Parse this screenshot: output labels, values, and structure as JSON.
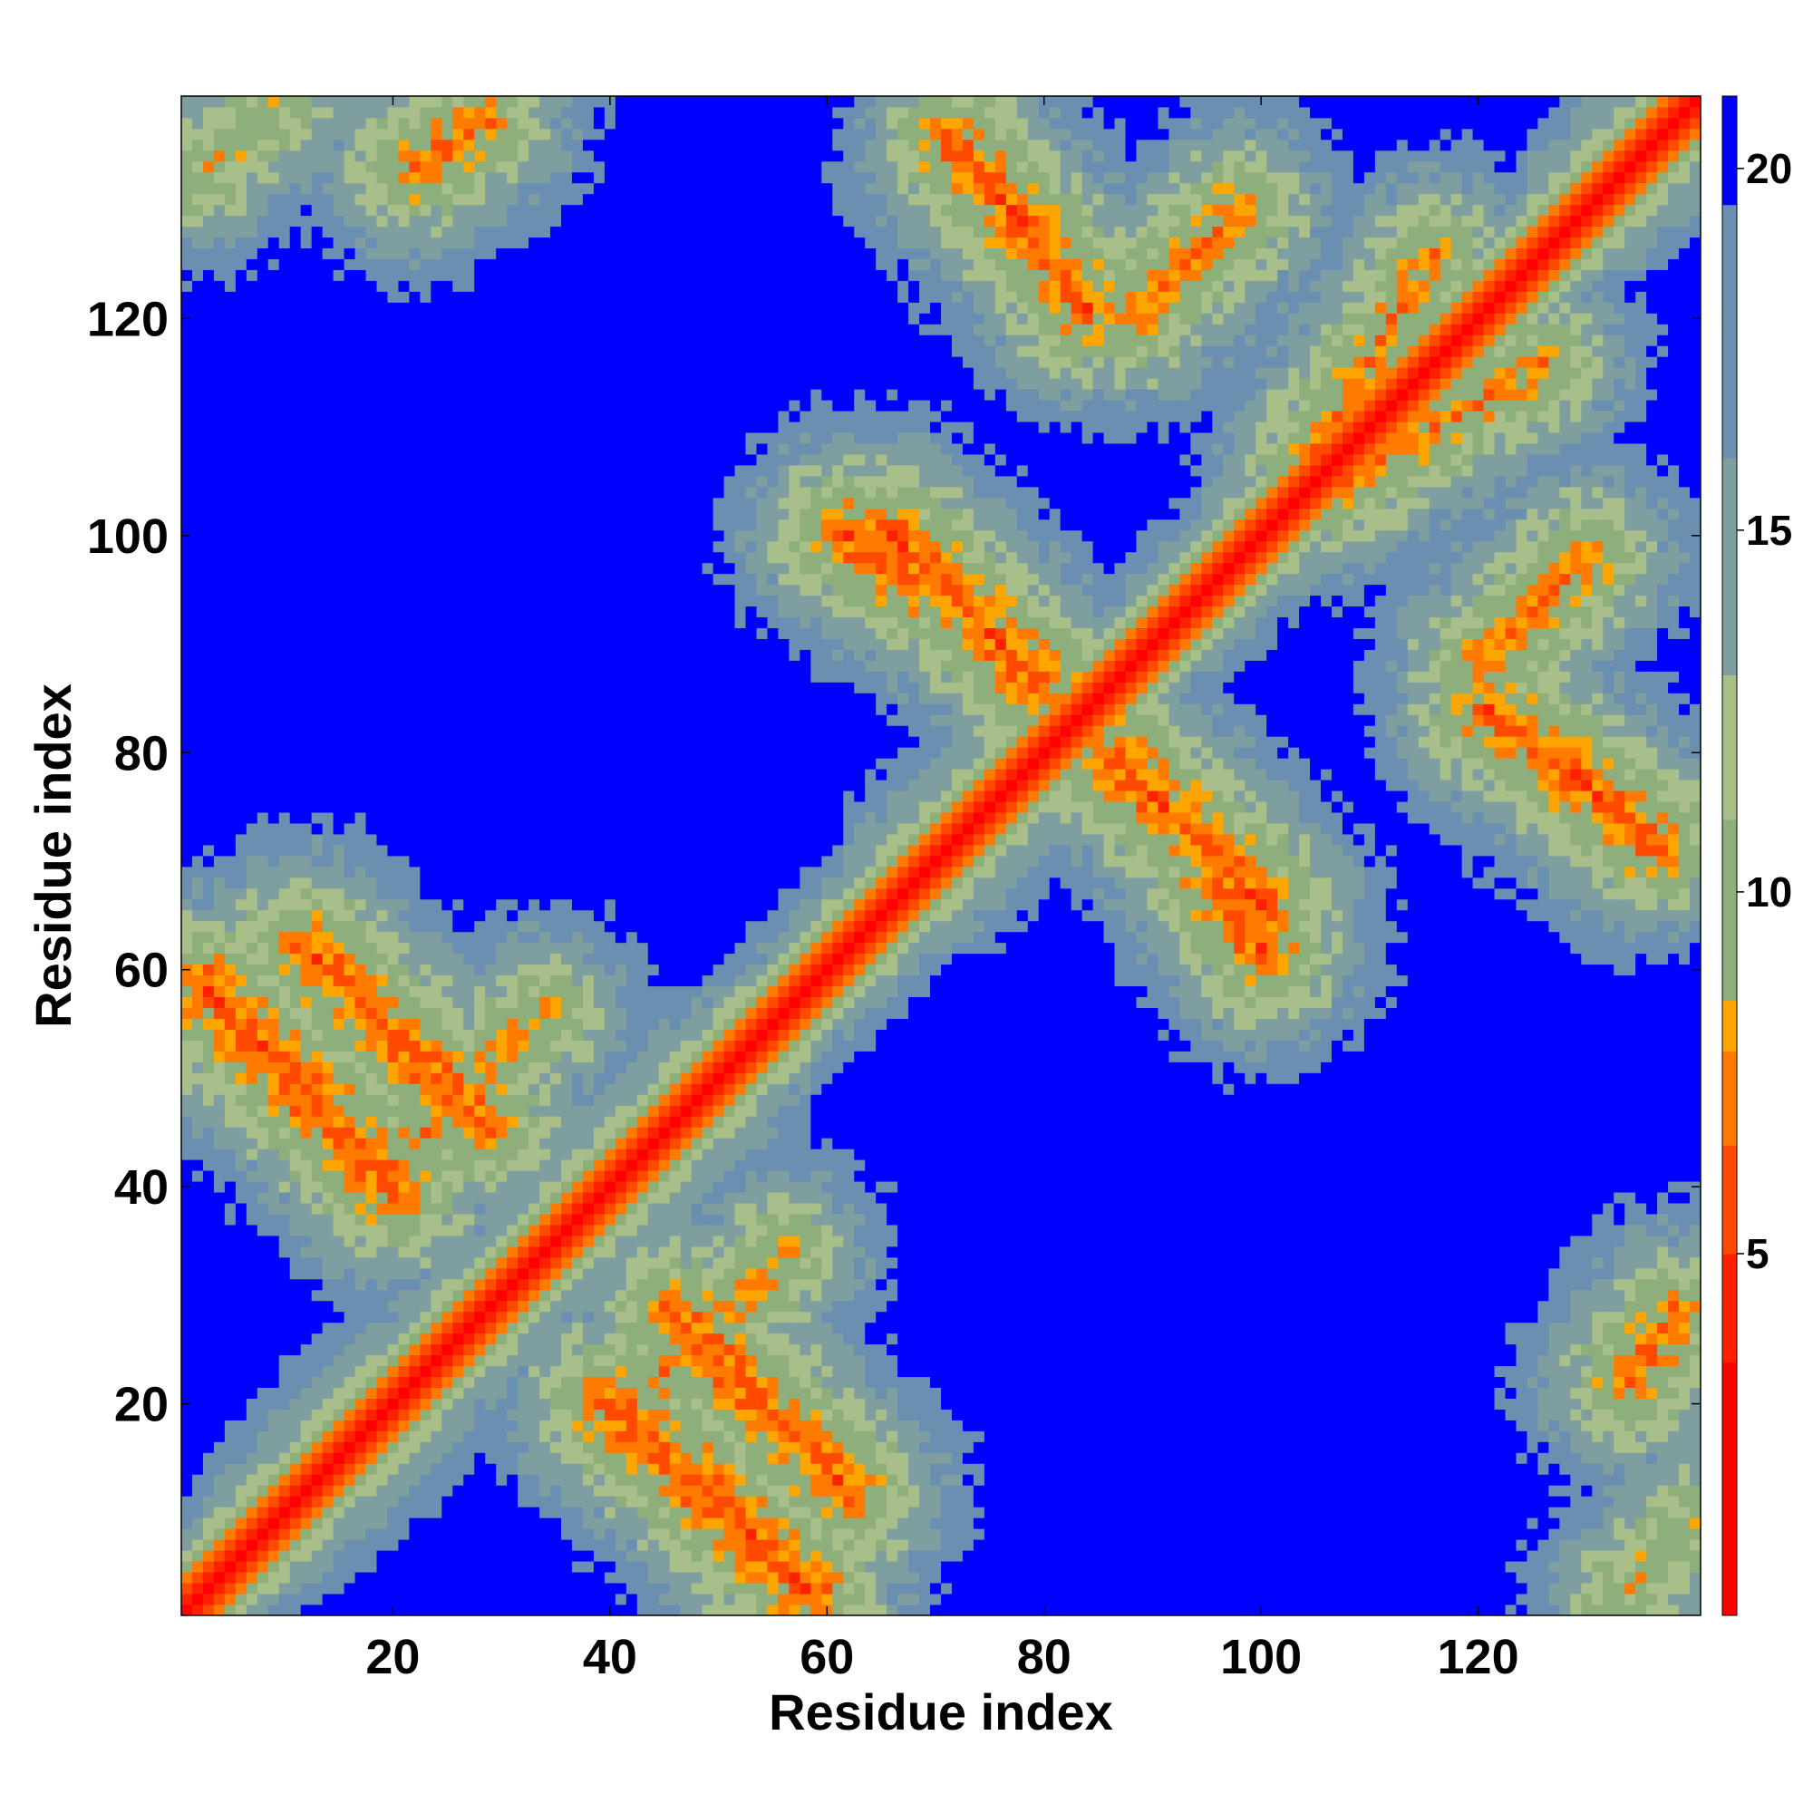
{
  "chart_data": {
    "type": "heatmap",
    "title": "",
    "xlabel": "Residue index",
    "ylabel": "Residue index",
    "n_residues": 140,
    "xlim": [
      0.5,
      140.5
    ],
    "ylim": [
      0.5,
      140.5
    ],
    "xticks": [
      20,
      40,
      60,
      80,
      100,
      120
    ],
    "yticks": [
      20,
      40,
      60,
      80,
      100,
      120
    ],
    "colorbar": {
      "ticks": [
        5,
        10,
        15,
        20
      ],
      "range": [
        0,
        21
      ],
      "position": "right",
      "colors": [
        "#ff0000",
        "#ff2000",
        "#ff4a00",
        "#ff7a00",
        "#ffa500",
        "#8eae7c",
        "#a9bf8a",
        "#7f9ea0",
        "#6a8fb0",
        "#0000ff"
      ],
      "bounds": [
        0,
        3.5,
        5,
        6.5,
        7.8,
        8.5,
        11,
        13,
        16,
        19.5,
        21
      ]
    },
    "cap_value": 21,
    "diagonal_band": [
      {
        "offset": 0,
        "value": 0.5
      },
      {
        "offset": 1,
        "value": 3.8
      },
      {
        "offset": 2,
        "value": 5.5
      },
      {
        "offset": 3,
        "value": 7.5
      },
      {
        "offset": 4,
        "value": 10
      },
      {
        "offset": 5,
        "value": 12.5
      }
    ],
    "helix_segments": [
      [
        3,
        32
      ],
      [
        35,
        58
      ],
      [
        62,
        90
      ],
      [
        95,
        122
      ],
      [
        125,
        140
      ]
    ],
    "helix_contacts": [
      {
        "a": [
          3,
          20
        ],
        "b": [
          58,
          40
        ],
        "kind": "anti",
        "min_value": 5.5
      },
      {
        "a": [
          12,
          28
        ],
        "b": [
          62,
          46
        ],
        "kind": "anti",
        "min_value": 5.8
      },
      {
        "a": [
          22,
          34
        ],
        "b": [
          44,
          56
        ],
        "kind": "para",
        "min_value": 7.5
      },
      {
        "a": [
          66,
          84
        ],
        "b": [
          100,
          82
        ],
        "kind": "anti",
        "min_value": 5.8
      },
      {
        "a": [
          72,
          84
        ],
        "b": [
          136,
          121
        ],
        "kind": "anti",
        "min_value": 5.8
      },
      {
        "a": [
          62,
          68
        ],
        "b": [
          100,
          96
        ],
        "kind": "anti",
        "min_value": 5.5
      },
      {
        "a": [
          88,
          98
        ],
        "b": [
          120,
          130
        ],
        "kind": "para",
        "min_value": 6.8
      },
      {
        "a": [
          104,
          116
        ],
        "b": [
          106,
          126
        ],
        "kind": "para",
        "min_value": 7.2
      },
      {
        "a": [
          2,
          10
        ],
        "b": [
          133,
          140
        ],
        "kind": "para",
        "min_value": 8.5
      },
      {
        "a": [
          22,
          28
        ],
        "b": [
          134,
          138
        ],
        "kind": "para",
        "min_value": 6.5
      }
    ],
    "grid": false,
    "legend": "none"
  }
}
